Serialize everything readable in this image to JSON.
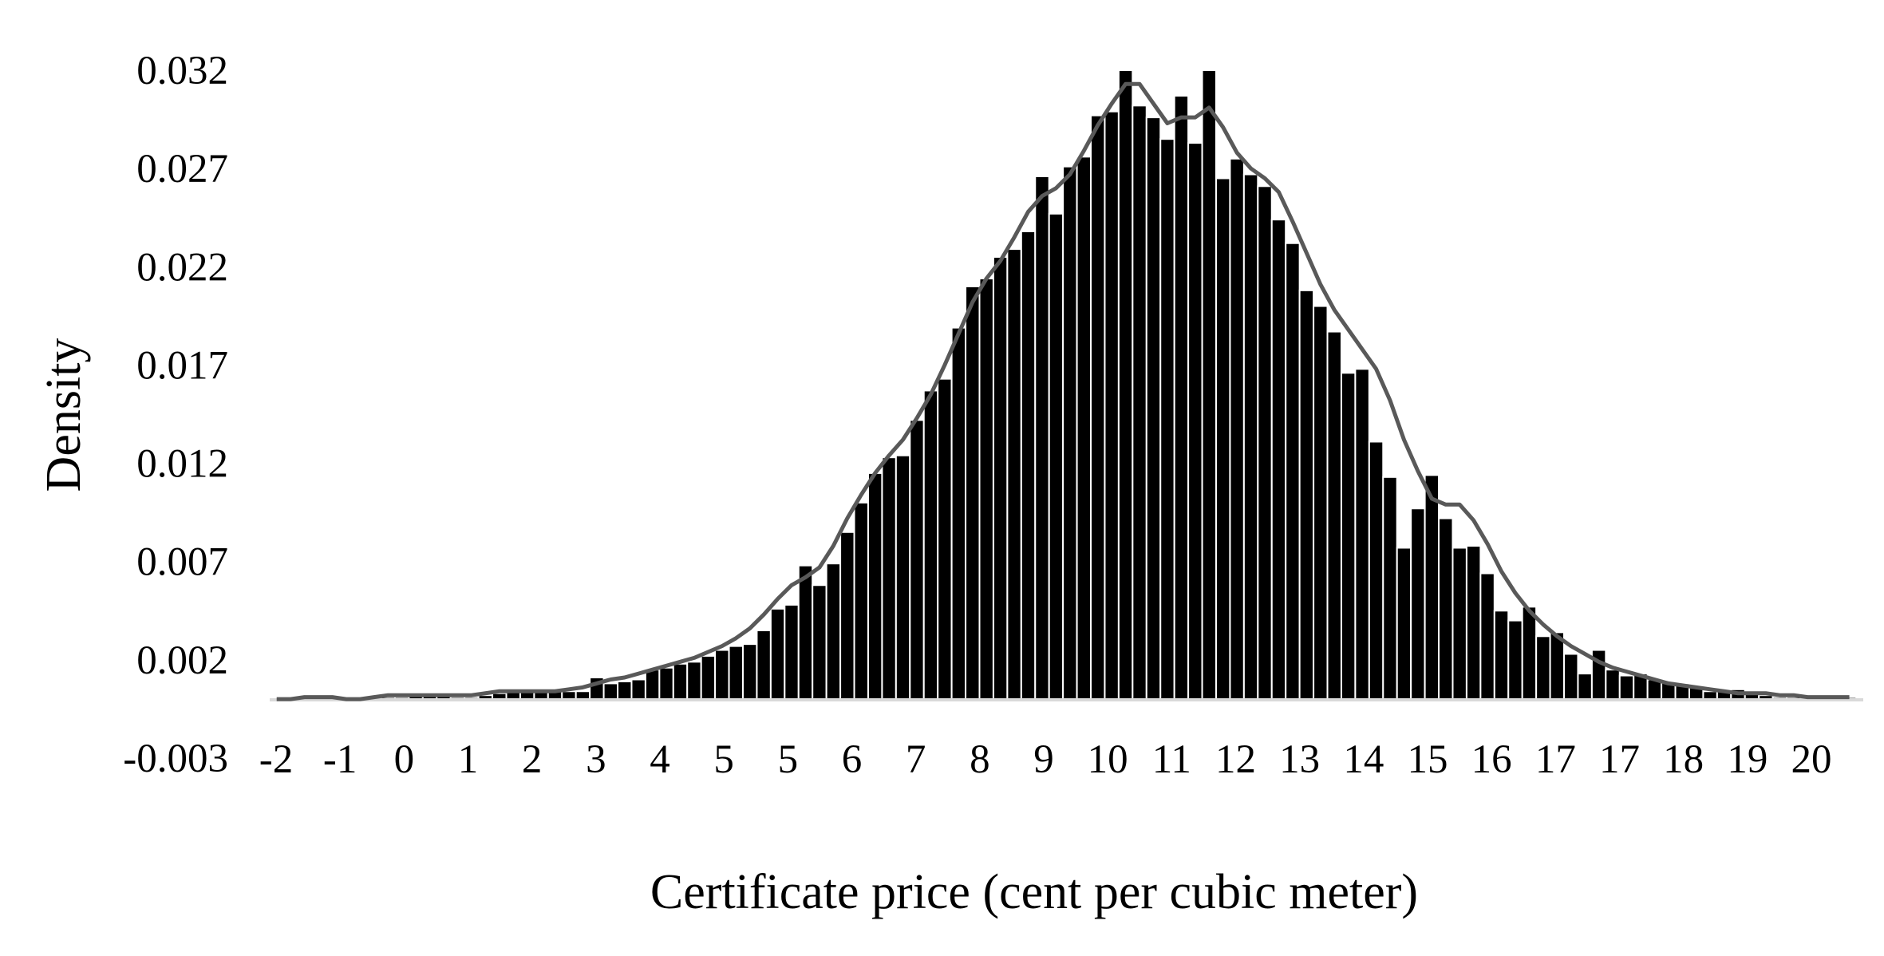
{
  "chart_data": {
    "type": "bar",
    "title": "",
    "xlabel": "Certificate price (cent per cubic meter)",
    "ylabel": "Density",
    "y_ticks": [
      "0.032",
      "0.027",
      "0.022",
      "0.017",
      "0.012",
      "0.007",
      "0.002",
      "-0.003"
    ],
    "y_tick_values": [
      0.032,
      0.027,
      0.022,
      0.017,
      0.012,
      0.007,
      0.002,
      -0.003
    ],
    "ylim": [
      -0.003,
      0.032
    ],
    "x_ticks": [
      "-2",
      "-1",
      "0",
      "1",
      "2",
      "3",
      "4",
      "5",
      "5",
      "6",
      "7",
      "8",
      "9",
      "10",
      "11",
      "12",
      "13",
      "14",
      "15",
      "16",
      "17",
      "17",
      "18",
      "19",
      "20"
    ],
    "bar_width": 0.2,
    "bar_colors": {
      "fill": "#000000",
      "stroke": "#ffffff"
    },
    "line_color": "#595959",
    "legend": "none",
    "grid": false,
    "series": [
      {
        "type": "bar",
        "x": [
          -2.0,
          -1.8,
          -1.6,
          -1.4,
          -1.2,
          -1.0,
          -0.8,
          -0.6,
          -0.4,
          -0.2,
          0.0,
          0.2,
          0.4,
          0.6,
          0.8,
          1.0,
          1.2,
          1.4,
          1.6,
          1.8,
          2.0,
          2.2,
          2.4,
          2.6,
          2.8,
          3.0,
          3.2,
          3.4,
          3.6,
          3.8,
          4.0,
          4.2,
          4.4,
          4.6,
          4.8,
          5.0,
          5.2,
          5.4,
          5.6,
          5.8,
          6.0,
          6.2,
          6.4,
          6.6,
          6.8,
          7.0,
          7.2,
          7.4,
          7.6,
          7.8,
          8.0,
          8.2,
          8.4,
          8.6,
          8.8,
          9.0,
          9.2,
          9.4,
          9.6,
          9.8,
          10.0,
          10.2,
          10.4,
          10.6,
          10.8,
          11.0,
          11.2,
          11.4,
          11.6,
          11.8,
          12.0,
          12.2,
          12.4,
          12.6,
          12.8,
          13.0,
          13.2,
          13.4,
          13.6,
          13.8,
          14.0,
          14.2,
          14.4,
          14.6,
          14.8,
          15.0,
          15.2,
          15.4,
          15.6,
          15.8,
          16.0,
          16.2,
          16.4,
          16.6,
          16.8,
          17.0,
          17.2,
          17.4,
          17.6,
          17.8,
          18.0,
          18.2,
          18.4,
          18.6,
          18.8,
          19.0,
          19.2,
          19.4,
          19.6,
          19.8,
          20.0,
          20.2,
          20.4,
          20.6
        ],
        "values": [
          0.0,
          0.0001,
          0.0,
          0.0001,
          0.0001,
          0.0001,
          0.0,
          0.0,
          0.0001,
          0.0001,
          0.0002,
          0.0002,
          0.0002,
          0.0001,
          0.0001,
          0.0002,
          0.0003,
          0.0005,
          0.0004,
          0.0004,
          0.0004,
          0.0004,
          0.0004,
          0.0011,
          0.0008,
          0.0009,
          0.001,
          0.0015,
          0.0016,
          0.0018,
          0.0019,
          0.0022,
          0.0025,
          0.0027,
          0.0028,
          0.0035,
          0.0046,
          0.0048,
          0.0068,
          0.0058,
          0.0069,
          0.0085,
          0.01,
          0.0115,
          0.0123,
          0.0124,
          0.0142,
          0.0157,
          0.0163,
          0.0189,
          0.021,
          0.0214,
          0.0225,
          0.0229,
          0.0238,
          0.0266,
          0.0247,
          0.0271,
          0.0276,
          0.0297,
          0.0299,
          0.032,
          0.0302,
          0.0296,
          0.0285,
          0.0307,
          0.0283,
          0.032,
          0.0265,
          0.0275,
          0.0267,
          0.0261,
          0.0244,
          0.0232,
          0.0208,
          0.02,
          0.0187,
          0.0166,
          0.0168,
          0.0131,
          0.0113,
          0.0077,
          0.0097,
          0.0114,
          0.0092,
          0.0077,
          0.0078,
          0.0064,
          0.0045,
          0.004,
          0.0047,
          0.0032,
          0.0034,
          0.0023,
          0.0013,
          0.0025,
          0.0015,
          0.0012,
          0.0013,
          0.001,
          0.0009,
          0.0008,
          0.0006,
          0.0004,
          0.0004,
          0.0005,
          0.0003,
          0.0002,
          0.0001,
          0.0001,
          0.0002,
          0.0002,
          0.0,
          0.0001
        ]
      },
      {
        "type": "line",
        "x": [
          -2.0,
          -1.8,
          -1.6,
          -1.4,
          -1.2,
          -1.0,
          -0.8,
          -0.6,
          -0.4,
          -0.2,
          0.0,
          0.2,
          0.4,
          0.6,
          0.8,
          1.0,
          1.2,
          1.4,
          1.6,
          1.8,
          2.0,
          2.2,
          2.4,
          2.6,
          2.8,
          3.0,
          3.2,
          3.4,
          3.6,
          3.8,
          4.0,
          4.2,
          4.4,
          4.6,
          4.8,
          5.0,
          5.2,
          5.4,
          5.6,
          5.8,
          6.0,
          6.2,
          6.4,
          6.6,
          6.8,
          7.0,
          7.2,
          7.4,
          7.6,
          7.8,
          8.0,
          8.2,
          8.4,
          8.6,
          8.8,
          9.0,
          9.2,
          9.4,
          9.6,
          9.8,
          10.0,
          10.2,
          10.4,
          10.6,
          10.8,
          11.0,
          11.2,
          11.4,
          11.6,
          11.8,
          12.0,
          12.2,
          12.4,
          12.6,
          12.8,
          13.0,
          13.2,
          13.4,
          13.6,
          13.8,
          14.0,
          14.2,
          14.4,
          14.6,
          14.8,
          15.0,
          15.2,
          15.4,
          15.6,
          15.8,
          16.0,
          16.2,
          16.4,
          16.6,
          16.8,
          17.0,
          17.2,
          17.4,
          17.6,
          17.8,
          18.0,
          18.2,
          18.4,
          18.6,
          18.8,
          19.0,
          19.2,
          19.4,
          19.6,
          19.8,
          20.0,
          20.2,
          20.4,
          20.6
        ],
        "values": [
          0.0,
          0.0,
          0.0001,
          0.0001,
          0.0001,
          0.0,
          0.0,
          0.0001,
          0.0002,
          0.0002,
          0.0002,
          0.0002,
          0.0002,
          0.0002,
          0.0002,
          0.0003,
          0.0004,
          0.0004,
          0.0004,
          0.0004,
          0.0004,
          0.0005,
          0.0006,
          0.0008,
          0.001,
          0.0011,
          0.0013,
          0.0015,
          0.0017,
          0.0019,
          0.0021,
          0.0024,
          0.0027,
          0.0031,
          0.0036,
          0.0043,
          0.0051,
          0.0058,
          0.0062,
          0.0067,
          0.0078,
          0.0092,
          0.0104,
          0.0115,
          0.0124,
          0.0132,
          0.0143,
          0.0155,
          0.017,
          0.0186,
          0.0202,
          0.0214,
          0.0223,
          0.0235,
          0.0248,
          0.0256,
          0.026,
          0.0267,
          0.0279,
          0.0292,
          0.0303,
          0.0313,
          0.0313,
          0.0303,
          0.0293,
          0.0296,
          0.0296,
          0.0301,
          0.0291,
          0.0278,
          0.027,
          0.0265,
          0.0258,
          0.0243,
          0.0227,
          0.0211,
          0.0198,
          0.0188,
          0.0178,
          0.0168,
          0.0152,
          0.0132,
          0.0116,
          0.0102,
          0.0099,
          0.0099,
          0.0091,
          0.0079,
          0.0065,
          0.0054,
          0.0045,
          0.0038,
          0.0032,
          0.0027,
          0.0023,
          0.0019,
          0.0016,
          0.0014,
          0.0012,
          0.001,
          0.0008,
          0.0007,
          0.0006,
          0.0005,
          0.0004,
          0.0003,
          0.0003,
          0.0003,
          0.0002,
          0.0002,
          0.0001,
          0.0001,
          0.0001,
          0.0001
        ]
      }
    ]
  }
}
